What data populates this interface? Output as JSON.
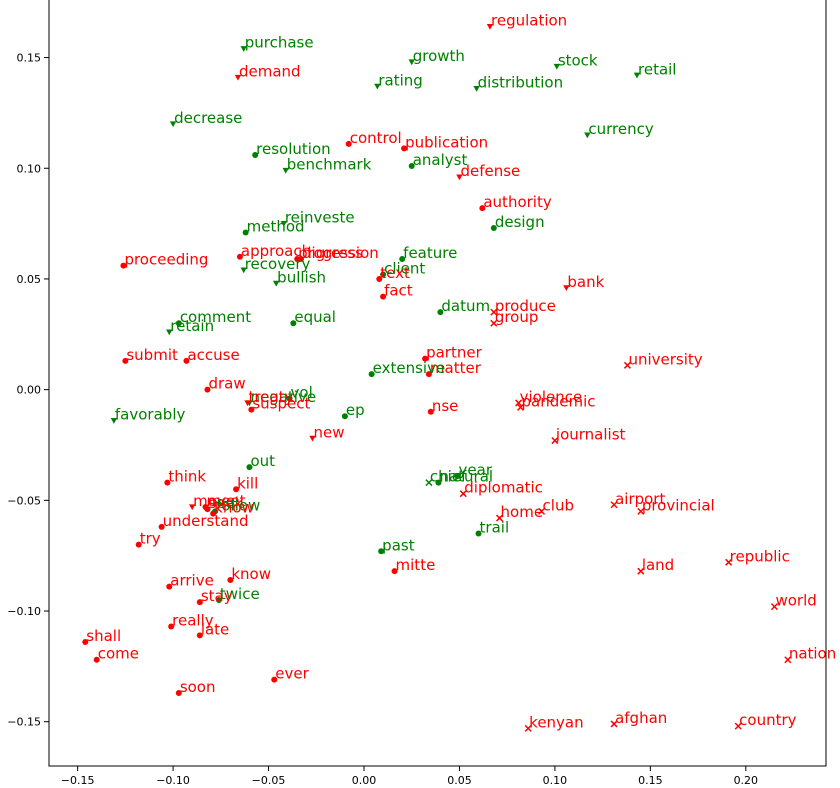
{
  "chart_data": {
    "type": "scatter",
    "xlim": [
      -0.165,
      0.242
    ],
    "ylim": [
      -0.17,
      0.176
    ],
    "x_ticks": [
      -0.15,
      -0.1,
      -0.05,
      0.0,
      0.05,
      0.1,
      0.15,
      0.2
    ],
    "x_tick_labels": [
      "−0.15",
      "−0.10",
      "−0.05",
      "0.00",
      "0.05",
      "0.10",
      "0.15",
      "0.20"
    ],
    "y_ticks": [
      0.15,
      0.1,
      0.05,
      0.0,
      -0.05,
      -0.1,
      -0.15
    ],
    "y_tick_labels": [
      "0.15",
      "0.10",
      "0.05",
      "0.00",
      "−0.05",
      "−0.10",
      "−0.15"
    ],
    "grid": false,
    "colors": {
      "red": "#ff0000",
      "green": "#008000"
    },
    "points": [
      {
        "label": "regulation",
        "x": 0.066,
        "y": 0.164,
        "color": "red",
        "marker": "triangle"
      },
      {
        "label": "purchase",
        "x": -0.063,
        "y": 0.154,
        "color": "green",
        "marker": "triangle"
      },
      {
        "label": "growth",
        "x": 0.025,
        "y": 0.148,
        "color": "green",
        "marker": "triangle"
      },
      {
        "label": "stock",
        "x": 0.101,
        "y": 0.146,
        "color": "green",
        "marker": "triangle"
      },
      {
        "label": "retail",
        "x": 0.143,
        "y": 0.142,
        "color": "green",
        "marker": "triangle"
      },
      {
        "label": "demand",
        "x": -0.066,
        "y": 0.141,
        "color": "red",
        "marker": "triangle"
      },
      {
        "label": "rating",
        "x": 0.007,
        "y": 0.137,
        "color": "green",
        "marker": "triangle"
      },
      {
        "label": "distribution",
        "x": 0.059,
        "y": 0.136,
        "color": "green",
        "marker": "triangle"
      },
      {
        "label": "decrease",
        "x": -0.1,
        "y": 0.12,
        "color": "green",
        "marker": "triangle"
      },
      {
        "label": "currency",
        "x": 0.117,
        "y": 0.115,
        "color": "green",
        "marker": "triangle"
      },
      {
        "label": "control",
        "x": -0.008,
        "y": 0.111,
        "color": "red",
        "marker": "circle"
      },
      {
        "label": "publication",
        "x": 0.021,
        "y": 0.109,
        "color": "red",
        "marker": "circle"
      },
      {
        "label": "resolution",
        "x": -0.057,
        "y": 0.106,
        "color": "green",
        "marker": "circle"
      },
      {
        "label": "analyst",
        "x": 0.025,
        "y": 0.101,
        "color": "green",
        "marker": "circle"
      },
      {
        "label": "benchmark",
        "x": -0.041,
        "y": 0.099,
        "color": "green",
        "marker": "triangle"
      },
      {
        "label": "defense",
        "x": 0.05,
        "y": 0.096,
        "color": "red",
        "marker": "triangle"
      },
      {
        "label": "authority",
        "x": 0.062,
        "y": 0.082,
        "color": "red",
        "marker": "circle"
      },
      {
        "label": "reinveste",
        "x": -0.042,
        "y": 0.075,
        "color": "green",
        "marker": "triangle"
      },
      {
        "label": "design",
        "x": 0.068,
        "y": 0.073,
        "color": "green",
        "marker": "circle"
      },
      {
        "label": "method",
        "x": -0.062,
        "y": 0.071,
        "color": "green",
        "marker": "circle"
      },
      {
        "label": "approach",
        "x": -0.065,
        "y": 0.06,
        "color": "red",
        "marker": "circle"
      },
      {
        "label": "progress",
        "x": -0.035,
        "y": 0.059,
        "color": "red",
        "marker": "circle"
      },
      {
        "label": "digression",
        "x": -0.033,
        "y": 0.059,
        "color": "red",
        "marker": "circle"
      },
      {
        "label": "feature",
        "x": 0.02,
        "y": 0.059,
        "color": "green",
        "marker": "circle"
      },
      {
        "label": "proceeding",
        "x": -0.126,
        "y": 0.056,
        "color": "red",
        "marker": "circle"
      },
      {
        "label": "recovery",
        "x": -0.063,
        "y": 0.054,
        "color": "green",
        "marker": "triangle"
      },
      {
        "label": "client",
        "x": 0.01,
        "y": 0.052,
        "color": "green",
        "marker": "circle"
      },
      {
        "label": "text",
        "x": 0.008,
        "y": 0.05,
        "color": "red",
        "marker": "circle"
      },
      {
        "label": "bullish",
        "x": -0.046,
        "y": 0.048,
        "color": "green",
        "marker": "triangle"
      },
      {
        "label": "bank",
        "x": 0.106,
        "y": 0.046,
        "color": "red",
        "marker": "triangle"
      },
      {
        "label": "fact",
        "x": 0.01,
        "y": 0.042,
        "color": "red",
        "marker": "circle"
      },
      {
        "label": "datum",
        "x": 0.04,
        "y": 0.035,
        "color": "green",
        "marker": "circle"
      },
      {
        "label": "produce",
        "x": 0.068,
        "y": 0.035,
        "color": "red",
        "marker": "cross"
      },
      {
        "label": "group",
        "x": 0.068,
        "y": 0.03,
        "color": "red",
        "marker": "cross"
      },
      {
        "label": "comment",
        "x": -0.097,
        "y": 0.03,
        "color": "green",
        "marker": "circle"
      },
      {
        "label": "equal",
        "x": -0.037,
        "y": 0.03,
        "color": "green",
        "marker": "circle"
      },
      {
        "label": "retain",
        "x": -0.102,
        "y": 0.026,
        "color": "green",
        "marker": "triangle"
      },
      {
        "label": "submit",
        "x": -0.125,
        "y": 0.013,
        "color": "red",
        "marker": "circle"
      },
      {
        "label": "accuse",
        "x": -0.093,
        "y": 0.013,
        "color": "red",
        "marker": "circle"
      },
      {
        "label": "partner",
        "x": 0.032,
        "y": 0.014,
        "color": "red",
        "marker": "circle"
      },
      {
        "label": "university",
        "x": 0.138,
        "y": 0.011,
        "color": "red",
        "marker": "cross"
      },
      {
        "label": "matter",
        "x": 0.034,
        "y": 0.007,
        "color": "red",
        "marker": "circle"
      },
      {
        "label": "extensive",
        "x": 0.004,
        "y": 0.007,
        "color": "green",
        "marker": "circle"
      },
      {
        "label": "draw",
        "x": -0.082,
        "y": 0.0,
        "color": "red",
        "marker": "circle"
      },
      {
        "label": "vol",
        "x": -0.039,
        "y": -0.004,
        "color": "green",
        "marker": "circle"
      },
      {
        "label": "negative",
        "x": -0.06,
        "y": -0.006,
        "color": "green",
        "marker": "triangle"
      },
      {
        "label": "treaty",
        "x": -0.061,
        "y": -0.006,
        "color": "red",
        "marker": "triangle"
      },
      {
        "label": "suspect",
        "x": -0.059,
        "y": -0.009,
        "color": "red",
        "marker": "circle"
      },
      {
        "label": "violence",
        "x": 0.081,
        "y": -0.006,
        "color": "red",
        "marker": "cross"
      },
      {
        "label": "pandemic",
        "x": 0.082,
        "y": -0.008,
        "color": "red",
        "marker": "cross"
      },
      {
        "label": "nse",
        "x": 0.035,
        "y": -0.01,
        "color": "red",
        "marker": "circle"
      },
      {
        "label": "ep",
        "x": -0.01,
        "y": -0.012,
        "color": "green",
        "marker": "circle"
      },
      {
        "label": "favorably",
        "x": -0.131,
        "y": -0.014,
        "color": "green",
        "marker": "triangle"
      },
      {
        "label": "new",
        "x": -0.027,
        "y": -0.022,
        "color": "red",
        "marker": "triangle"
      },
      {
        "label": "journalist",
        "x": 0.1,
        "y": -0.023,
        "color": "red",
        "marker": "cross"
      },
      {
        "label": "out",
        "x": -0.06,
        "y": -0.035,
        "color": "green",
        "marker": "circle"
      },
      {
        "label": "year",
        "x": 0.049,
        "y": -0.039,
        "color": "green",
        "marker": "circle"
      },
      {
        "label": "natural",
        "x": 0.039,
        "y": -0.042,
        "color": "green",
        "marker": "circle"
      },
      {
        "label": "chief",
        "x": 0.034,
        "y": -0.042,
        "color": "green",
        "marker": "cross"
      },
      {
        "label": "think",
        "x": -0.103,
        "y": -0.042,
        "color": "red",
        "marker": "circle"
      },
      {
        "label": "kill",
        "x": -0.067,
        "y": -0.045,
        "color": "red",
        "marker": "circle"
      },
      {
        "label": "diplomatic",
        "x": 0.052,
        "y": -0.047,
        "color": "red",
        "marker": "cross"
      },
      {
        "label": "airport",
        "x": 0.131,
        "y": -0.052,
        "color": "red",
        "marker": "cross"
      },
      {
        "label": "club",
        "x": 0.093,
        "y": -0.055,
        "color": "red",
        "marker": "cross"
      },
      {
        "label": "provincial",
        "x": 0.145,
        "y": -0.055,
        "color": "red",
        "marker": "cross"
      },
      {
        "label": "move",
        "x": -0.09,
        "y": -0.053,
        "color": "red",
        "marker": "triangle"
      },
      {
        "label": "meet",
        "x": -0.083,
        "y": -0.053,
        "color": "red",
        "marker": "circle"
      },
      {
        "label": "seek",
        "x": -0.082,
        "y": -0.054,
        "color": "red",
        "marker": "circle"
      },
      {
        "label": "follow",
        "x": -0.078,
        "y": -0.055,
        "color": "green",
        "marker": "circle"
      },
      {
        "label": "know",
        "x": -0.079,
        "y": -0.056,
        "color": "red",
        "marker": "circle"
      },
      {
        "label": "home",
        "x": 0.071,
        "y": -0.058,
        "color": "red",
        "marker": "cross"
      },
      {
        "label": "understand",
        "x": -0.106,
        "y": -0.062,
        "color": "red",
        "marker": "circle"
      },
      {
        "label": "trail",
        "x": 0.06,
        "y": -0.065,
        "color": "green",
        "marker": "circle"
      },
      {
        "label": "try",
        "x": -0.118,
        "y": -0.07,
        "color": "red",
        "marker": "circle"
      },
      {
        "label": "past",
        "x": 0.009,
        "y": -0.073,
        "color": "green",
        "marker": "circle"
      },
      {
        "label": "republic",
        "x": 0.191,
        "y": -0.078,
        "color": "red",
        "marker": "cross"
      },
      {
        "label": "mitte",
        "x": 0.016,
        "y": -0.082,
        "color": "red",
        "marker": "circle"
      },
      {
        "label": "land",
        "x": 0.145,
        "y": -0.082,
        "color": "red",
        "marker": "cross"
      },
      {
        "label": "know",
        "x": -0.07,
        "y": -0.086,
        "color": "red",
        "marker": "circle"
      },
      {
        "label": "arrive",
        "x": -0.102,
        "y": -0.089,
        "color": "red",
        "marker": "circle"
      },
      {
        "label": "twice",
        "x": -0.076,
        "y": -0.095,
        "color": "green",
        "marker": "circle"
      },
      {
        "label": "stay",
        "x": -0.086,
        "y": -0.096,
        "color": "red",
        "marker": "circle"
      },
      {
        "label": "world",
        "x": 0.215,
        "y": -0.098,
        "color": "red",
        "marker": "cross"
      },
      {
        "label": "really",
        "x": -0.101,
        "y": -0.107,
        "color": "red",
        "marker": "circle"
      },
      {
        "label": "late",
        "x": -0.086,
        "y": -0.111,
        "color": "red",
        "marker": "circle"
      },
      {
        "label": "shall",
        "x": -0.146,
        "y": -0.114,
        "color": "red",
        "marker": "circle"
      },
      {
        "label": "nation",
        "x": 0.222,
        "y": -0.122,
        "color": "red",
        "marker": "cross"
      },
      {
        "label": "come",
        "x": -0.14,
        "y": -0.122,
        "color": "red",
        "marker": "circle"
      },
      {
        "label": "ever",
        "x": -0.047,
        "y": -0.131,
        "color": "red",
        "marker": "circle"
      },
      {
        "label": "soon",
        "x": -0.097,
        "y": -0.137,
        "color": "red",
        "marker": "circle"
      },
      {
        "label": "afghan",
        "x": 0.131,
        "y": -0.151,
        "color": "red",
        "marker": "cross"
      },
      {
        "label": "country",
        "x": 0.196,
        "y": -0.152,
        "color": "red",
        "marker": "cross"
      },
      {
        "label": "kenyan",
        "x": 0.086,
        "y": -0.153,
        "color": "red",
        "marker": "cross"
      }
    ]
  }
}
